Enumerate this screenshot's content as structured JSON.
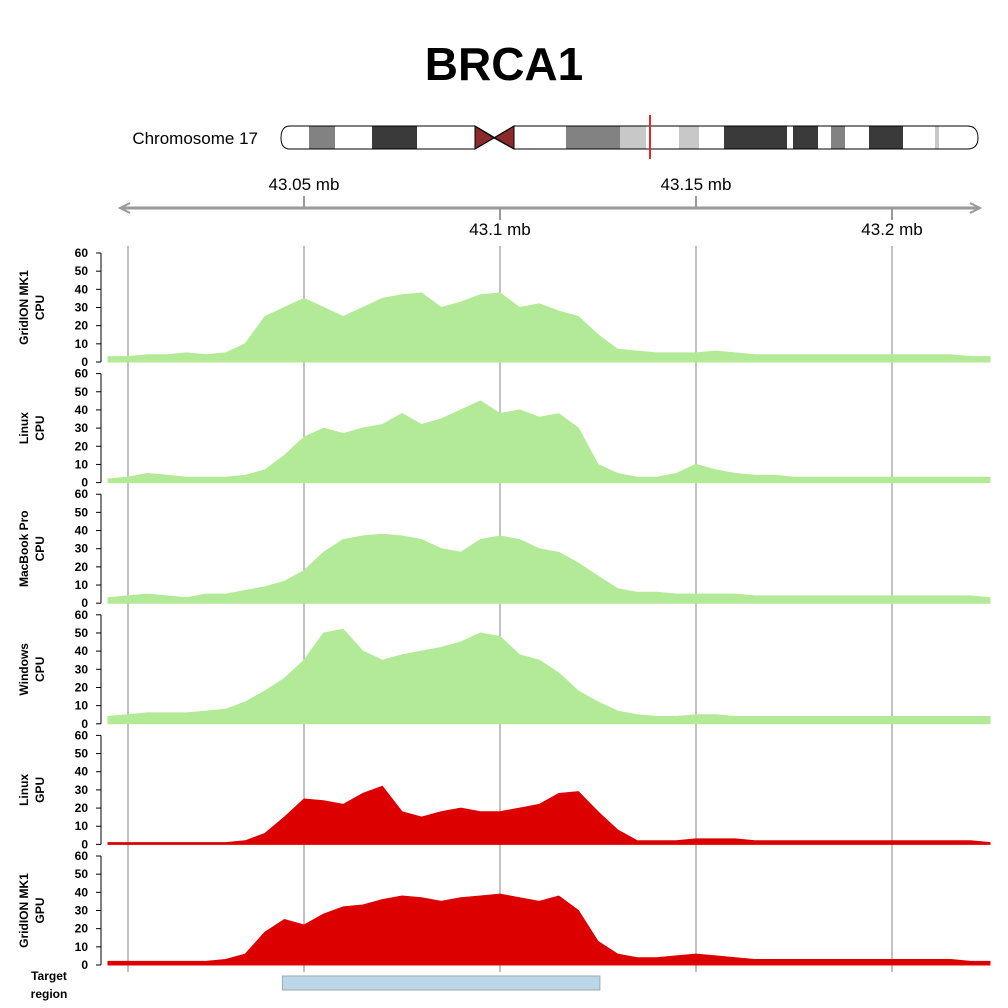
{
  "title": "BRCA1",
  "ideogram": {
    "label": "Chromosome 17",
    "highlight_color": "#e8262a",
    "highlight_position": 0.528
  },
  "axis": {
    "range_mb": [
      43.0,
      43.225
    ],
    "top_ticks": [
      {
        "value": 43.05,
        "label": "43.05 mb"
      },
      {
        "value": 43.15,
        "label": "43.15 mb"
      }
    ],
    "bottom_ticks": [
      {
        "value": 43.1,
        "label": "43.1 mb"
      },
      {
        "value": 43.2,
        "label": "43.2 mb"
      }
    ]
  },
  "target_region": {
    "label_line1": "Target",
    "label_line2": "region",
    "start_mb": 43.0445,
    "end_mb": 43.1255,
    "color": "#bcd8e8"
  },
  "chart_data": {
    "type": "area",
    "x_unit": "mb",
    "x": [
      43.0,
      43.005,
      43.01,
      43.015,
      43.02,
      43.025,
      43.03,
      43.035,
      43.04,
      43.045,
      43.05,
      43.055,
      43.06,
      43.065,
      43.07,
      43.075,
      43.08,
      43.085,
      43.09,
      43.095,
      43.1,
      43.105,
      43.11,
      43.115,
      43.12,
      43.125,
      43.13,
      43.135,
      43.14,
      43.145,
      43.15,
      43.155,
      43.16,
      43.165,
      43.17,
      43.175,
      43.18,
      43.185,
      43.19,
      43.195,
      43.2,
      43.205,
      43.21,
      43.215,
      43.22,
      43.225
    ],
    "ylim": [
      0,
      60
    ],
    "yticks": [
      0,
      10,
      20,
      30,
      40,
      50,
      60
    ],
    "series": [
      {
        "line1": "GridION MK1",
        "line2": "CPU",
        "color": "#b3ea98",
        "values": [
          3,
          3,
          4,
          4,
          5,
          4,
          5,
          10,
          25,
          30,
          35,
          30,
          25,
          30,
          35,
          37,
          38,
          30,
          33,
          37,
          38,
          30,
          32,
          28,
          25,
          15,
          7,
          6,
          5,
          5,
          5,
          6,
          5,
          4,
          4,
          4,
          4,
          4,
          4,
          4,
          4,
          4,
          4,
          4,
          3,
          3
        ]
      },
      {
        "line1": "Linux",
        "line2": "CPU",
        "color": "#b3ea98",
        "values": [
          2,
          3,
          5,
          4,
          3,
          3,
          3,
          4,
          7,
          15,
          25,
          30,
          27,
          30,
          32,
          38,
          32,
          35,
          40,
          45,
          38,
          40,
          36,
          38,
          30,
          10,
          5,
          3,
          3,
          5,
          10,
          7,
          5,
          4,
          4,
          3,
          3,
          3,
          3,
          3,
          3,
          3,
          3,
          3,
          3,
          3
        ]
      },
      {
        "line1": "MacBook Pro",
        "line2": "CPU",
        "color": "#b3ea98",
        "values": [
          3,
          4,
          5,
          4,
          3,
          5,
          5,
          7,
          9,
          12,
          18,
          28,
          35,
          37,
          38,
          37,
          35,
          30,
          28,
          35,
          37,
          35,
          30,
          28,
          22,
          15,
          8,
          6,
          6,
          5,
          5,
          5,
          5,
          4,
          4,
          4,
          4,
          4,
          4,
          4,
          4,
          4,
          4,
          4,
          4,
          3
        ]
      },
      {
        "line1": "Windows",
        "line2": "CPU",
        "color": "#b3ea98",
        "values": [
          4,
          5,
          6,
          6,
          6,
          7,
          8,
          12,
          18,
          25,
          35,
          50,
          52,
          40,
          35,
          38,
          40,
          42,
          45,
          50,
          48,
          38,
          35,
          28,
          18,
          12,
          7,
          5,
          4,
          4,
          5,
          5,
          4,
          4,
          4,
          4,
          4,
          4,
          4,
          4,
          4,
          4,
          4,
          4,
          4,
          4
        ]
      },
      {
        "line1": "Linux",
        "line2": "GPU",
        "color": "#dd0000",
        "values": [
          1,
          1,
          1,
          1,
          1,
          1,
          1,
          2,
          6,
          15,
          25,
          24,
          22,
          28,
          32,
          18,
          15,
          18,
          20,
          18,
          18,
          20,
          22,
          28,
          29,
          18,
          8,
          2,
          2,
          2,
          3,
          3,
          3,
          2,
          2,
          2,
          2,
          2,
          2,
          2,
          2,
          2,
          2,
          2,
          2,
          1
        ]
      },
      {
        "line1": "GridION MK1",
        "line2": "GPU",
        "color": "#dd0000",
        "values": [
          2,
          2,
          2,
          2,
          2,
          2,
          3,
          6,
          18,
          25,
          22,
          28,
          32,
          33,
          36,
          38,
          37,
          35,
          37,
          38,
          39,
          37,
          35,
          38,
          30,
          13,
          6,
          4,
          4,
          5,
          6,
          5,
          4,
          3,
          3,
          3,
          3,
          3,
          3,
          3,
          3,
          3,
          3,
          3,
          2,
          2
        ]
      }
    ]
  }
}
